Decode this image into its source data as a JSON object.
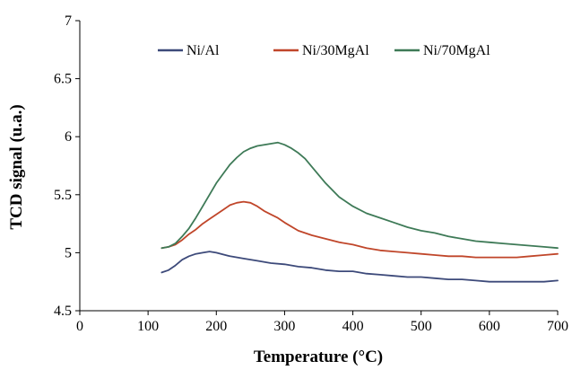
{
  "chart_data": {
    "type": "line",
    "title": "",
    "xlabel": "Temperature (°C)",
    "ylabel": "TCD signal (u.a.)",
    "xlim": [
      0,
      700
    ],
    "ylim": [
      4.5,
      7
    ],
    "xticks": [
      "0",
      "100",
      "200",
      "300",
      "400",
      "500",
      "600",
      "700"
    ],
    "yticks": [
      "4.5",
      "5",
      "5.5",
      "6",
      "6.5",
      "7"
    ],
    "grid": false,
    "legend_position": "top",
    "series": [
      {
        "name": "Ni/Al",
        "color": "#3d4a7a",
        "x": [
          120,
          130,
          140,
          150,
          160,
          170,
          180,
          190,
          200,
          220,
          240,
          260,
          280,
          300,
          320,
          340,
          360,
          380,
          400,
          420,
          440,
          460,
          480,
          500,
          520,
          540,
          560,
          580,
          600,
          620,
          640,
          660,
          680,
          700
        ],
        "y": [
          4.83,
          4.85,
          4.89,
          4.94,
          4.97,
          4.99,
          5.0,
          5.01,
          5.0,
          4.97,
          4.95,
          4.93,
          4.91,
          4.9,
          4.88,
          4.87,
          4.85,
          4.84,
          4.84,
          4.82,
          4.81,
          4.8,
          4.79,
          4.79,
          4.78,
          4.77,
          4.77,
          4.76,
          4.75,
          4.75,
          4.75,
          4.75,
          4.75,
          4.76
        ]
      },
      {
        "name": "Ni/30MgAl",
        "color": "#c0462a",
        "x": [
          120,
          130,
          140,
          150,
          160,
          170,
          180,
          190,
          200,
          210,
          220,
          230,
          240,
          250,
          260,
          270,
          280,
          290,
          300,
          320,
          340,
          360,
          380,
          400,
          420,
          440,
          460,
          480,
          500,
          520,
          540,
          560,
          580,
          600,
          620,
          640,
          660,
          680,
          700
        ],
        "y": [
          5.04,
          5.05,
          5.07,
          5.11,
          5.16,
          5.2,
          5.25,
          5.29,
          5.33,
          5.37,
          5.41,
          5.43,
          5.44,
          5.43,
          5.4,
          5.36,
          5.33,
          5.3,
          5.26,
          5.19,
          5.15,
          5.12,
          5.09,
          5.07,
          5.04,
          5.02,
          5.01,
          5.0,
          4.99,
          4.98,
          4.97,
          4.97,
          4.96,
          4.96,
          4.96,
          4.96,
          4.97,
          4.98,
          4.99
        ]
      },
      {
        "name": "Ni/70MgAl",
        "color": "#3e7a57",
        "x": [
          120,
          130,
          140,
          150,
          160,
          170,
          180,
          190,
          200,
          210,
          220,
          230,
          240,
          250,
          260,
          270,
          280,
          290,
          300,
          310,
          320,
          330,
          340,
          360,
          380,
          400,
          420,
          440,
          460,
          480,
          500,
          520,
          540,
          560,
          580,
          600,
          620,
          640,
          660,
          680,
          700
        ],
        "y": [
          5.04,
          5.05,
          5.08,
          5.14,
          5.21,
          5.3,
          5.4,
          5.5,
          5.6,
          5.68,
          5.76,
          5.82,
          5.87,
          5.9,
          5.92,
          5.93,
          5.94,
          5.95,
          5.93,
          5.9,
          5.86,
          5.81,
          5.74,
          5.6,
          5.48,
          5.4,
          5.34,
          5.3,
          5.26,
          5.22,
          5.19,
          5.17,
          5.14,
          5.12,
          5.1,
          5.09,
          5.08,
          5.07,
          5.06,
          5.05,
          5.04
        ]
      }
    ]
  }
}
